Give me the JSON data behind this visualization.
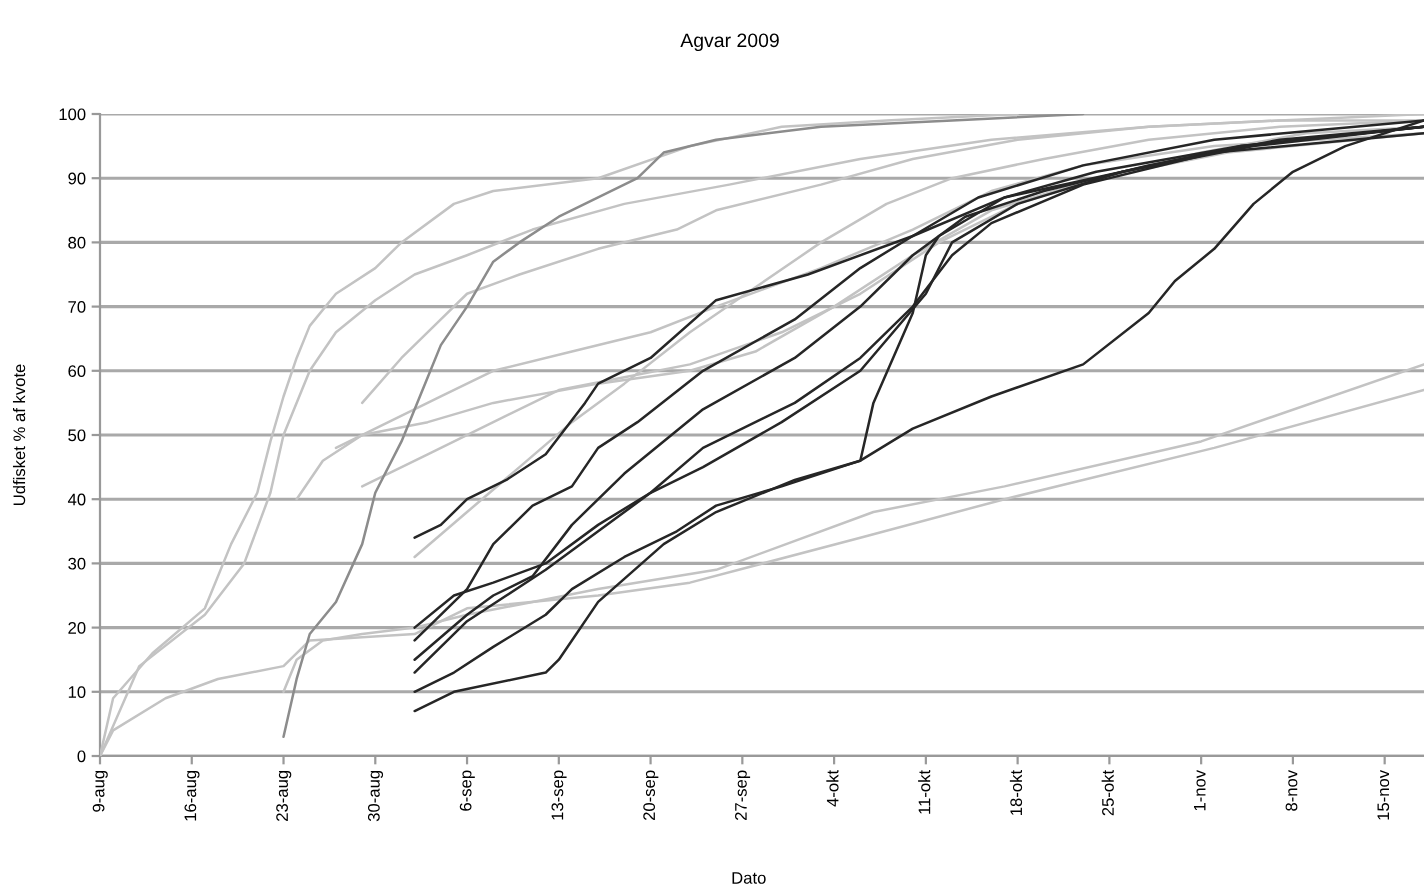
{
  "chart_data": {
    "type": "line",
    "title": "Agvar 2009",
    "xlabel": "Dato",
    "ylabel": "Udfisket % af kvote",
    "xlim": [
      "2009-08-09",
      "2009-11-18"
    ],
    "ylim": [
      0,
      100
    ],
    "xticks": [
      {
        "value": "2009-08-09",
        "label": "9-aug"
      },
      {
        "value": "2009-08-16",
        "label": "16-aug"
      },
      {
        "value": "2009-08-23",
        "label": "23-aug"
      },
      {
        "value": "2009-08-30",
        "label": "30-aug"
      },
      {
        "value": "2009-09-06",
        "label": "6-sep"
      },
      {
        "value": "2009-09-13",
        "label": "13-sep"
      },
      {
        "value": "2009-09-20",
        "label": "20-sep"
      },
      {
        "value": "2009-09-27",
        "label": "27-sep"
      },
      {
        "value": "2009-10-04",
        "label": "4-okt"
      },
      {
        "value": "2009-10-11",
        "label": "11-okt"
      },
      {
        "value": "2009-10-18",
        "label": "18-okt"
      },
      {
        "value": "2009-10-25",
        "label": "25-okt"
      },
      {
        "value": "2009-11-01",
        "label": "1-nov"
      },
      {
        "value": "2009-11-08",
        "label": "8-nov"
      },
      {
        "value": "2009-11-15",
        "label": "15-nov"
      }
    ],
    "yticks": [
      0,
      10,
      20,
      30,
      40,
      50,
      60,
      70,
      80,
      90,
      100
    ],
    "grid": "y",
    "series": [
      {
        "color": "#c3c3c3",
        "x": [
          "2009-08-09",
          "2009-08-10",
          "2009-08-13",
          "2009-08-17",
          "2009-08-19",
          "2009-08-21",
          "2009-08-22",
          "2009-08-23",
          "2009-08-24",
          "2009-08-25",
          "2009-08-27",
          "2009-08-30",
          "2009-09-01",
          "2009-09-05",
          "2009-09-08",
          "2009-09-16",
          "2009-09-23",
          "2009-09-30",
          "2009-10-08",
          "2009-10-18"
        ],
        "values": [
          0,
          9,
          16,
          23,
          33,
          41,
          49,
          56,
          62,
          67,
          72,
          76,
          80,
          86,
          88,
          90,
          95,
          98,
          99,
          100
        ]
      },
      {
        "color": "#c3c3c3",
        "x": [
          "2009-08-09",
          "2009-08-12",
          "2009-08-17",
          "2009-08-20",
          "2009-08-22",
          "2009-08-23",
          "2009-08-25",
          "2009-08-27",
          "2009-08-30",
          "2009-09-02",
          "2009-09-06",
          "2009-09-11",
          "2009-09-18",
          "2009-09-26",
          "2009-10-06",
          "2009-10-16",
          "2009-10-28",
          "2009-11-07",
          "2009-11-18"
        ],
        "values": [
          0,
          14,
          22,
          30,
          41,
          50,
          60,
          66,
          71,
          75,
          78,
          82,
          86,
          89,
          93,
          96,
          98,
          99,
          99
        ]
      },
      {
        "color": "#c3c3c3",
        "x": [
          "2009-08-09",
          "2009-08-10",
          "2009-08-14",
          "2009-08-18",
          "2009-08-23",
          "2009-08-25",
          "2009-09-02",
          "2009-09-06",
          "2009-09-16",
          "2009-09-23",
          "2009-10-06",
          "2009-10-17",
          "2009-11-02",
          "2009-11-18"
        ],
        "values": [
          0,
          4,
          9,
          12,
          14,
          18,
          19,
          23,
          25,
          27,
          34,
          40,
          48,
          57
        ]
      },
      {
        "color": "#c3c3c3",
        "x": [
          "2009-08-23",
          "2009-08-24",
          "2009-08-26",
          "2009-08-29",
          "2009-09-02",
          "2009-09-06",
          "2009-09-11",
          "2009-09-16",
          "2009-09-25",
          "2009-10-07",
          "2009-10-17",
          "2009-11-01",
          "2009-11-18"
        ],
        "values": [
          10,
          15,
          18,
          19,
          20,
          22,
          24,
          26,
          29,
          38,
          42,
          49,
          61
        ]
      },
      {
        "color": "#c3c3c3",
        "x": [
          "2009-09-02",
          "2009-09-06",
          "2009-09-10",
          "2009-09-14",
          "2009-09-18",
          "2009-09-23",
          "2009-09-28",
          "2009-10-03",
          "2009-10-08",
          "2009-10-13",
          "2009-10-20",
          "2009-10-28",
          "2009-11-07",
          "2009-11-18"
        ],
        "values": [
          31,
          38,
          45,
          52,
          58,
          66,
          73,
          80,
          86,
          90,
          93,
          96,
          98,
          99
        ]
      },
      {
        "color": "#c3c3c3",
        "x": [
          "2009-08-29",
          "2009-09-03",
          "2009-09-08",
          "2009-09-13",
          "2009-09-18",
          "2009-09-23",
          "2009-09-30",
          "2009-10-06",
          "2009-10-12",
          "2009-10-18",
          "2009-10-24",
          "2009-11-01",
          "2009-11-09",
          "2009-11-18"
        ],
        "values": [
          42,
          47,
          52,
          57,
          59,
          61,
          66,
          72,
          80,
          86,
          90,
          94,
          97,
          98
        ]
      },
      {
        "color": "#c3c3c3",
        "x": [
          "2009-08-24",
          "2009-08-26",
          "2009-08-29",
          "2009-09-03",
          "2009-09-08",
          "2009-09-16",
          "2009-09-23",
          "2009-09-28",
          "2009-10-04",
          "2009-10-10",
          "2009-10-16",
          "2009-10-24",
          "2009-11-03",
          "2009-11-18"
        ],
        "values": [
          40,
          46,
          50,
          52,
          55,
          58,
          60,
          63,
          70,
          78,
          85,
          90,
          94,
          97
        ]
      },
      {
        "color": "#c3c3c3",
        "x": [
          "2009-08-29",
          "2009-09-01",
          "2009-09-04",
          "2009-09-06",
          "2009-09-10",
          "2009-09-16",
          "2009-09-22",
          "2009-09-25",
          "2009-10-03",
          "2009-10-10",
          "2009-10-18",
          "2009-10-28",
          "2009-11-07",
          "2009-11-18"
        ],
        "values": [
          55,
          62,
          68,
          72,
          75,
          79,
          82,
          85,
          89,
          93,
          96,
          98,
          99,
          100
        ]
      },
      {
        "color": "#c3c3c3",
        "x": [
          "2009-08-27",
          "2009-08-31",
          "2009-09-04",
          "2009-09-08",
          "2009-09-14",
          "2009-09-20",
          "2009-09-25",
          "2009-10-03",
          "2009-10-10",
          "2009-10-16",
          "2009-10-23",
          "2009-11-02",
          "2009-11-18"
        ],
        "values": [
          48,
          52,
          56,
          60,
          63,
          66,
          70,
          76,
          82,
          88,
          92,
          95,
          97
        ]
      },
      {
        "color": "#8c8c8c",
        "x": [
          "2009-08-23",
          "2009-08-24",
          "2009-08-25",
          "2009-08-27",
          "2009-08-29",
          "2009-08-30",
          "2009-09-01",
          "2009-09-03",
          "2009-09-04",
          "2009-09-06",
          "2009-09-08",
          "2009-09-10",
          "2009-09-13",
          "2009-09-16",
          "2009-09-19",
          "2009-09-21",
          "2009-09-25",
          "2009-10-03",
          "2009-10-13",
          "2009-10-23"
        ],
        "values": [
          3,
          12,
          19,
          24,
          33,
          41,
          49,
          59,
          64,
          70,
          77,
          80,
          84,
          87,
          90,
          94,
          96,
          98,
          99,
          100
        ]
      },
      {
        "color": "#262626",
        "x": [
          "2009-09-02",
          "2009-09-04",
          "2009-09-06",
          "2009-09-09",
          "2009-09-12",
          "2009-09-15",
          "2009-09-16",
          "2009-09-20",
          "2009-09-25",
          "2009-10-02",
          "2009-10-10",
          "2009-10-15",
          "2009-10-23",
          "2009-11-02",
          "2009-11-18"
        ],
        "values": [
          34,
          36,
          40,
          43,
          47,
          55,
          58,
          62,
          71,
          75,
          81,
          87,
          92,
          96,
          99
        ]
      },
      {
        "color": "#262626",
        "x": [
          "2009-09-02",
          "2009-09-03",
          "2009-09-06",
          "2009-09-08",
          "2009-09-11",
          "2009-09-14",
          "2009-09-16",
          "2009-09-19",
          "2009-09-24",
          "2009-10-01",
          "2009-10-06",
          "2009-10-10",
          "2009-10-17",
          "2009-10-26",
          "2009-11-04",
          "2009-11-18"
        ],
        "values": [
          18,
          20,
          26,
          33,
          39,
          42,
          48,
          52,
          60,
          68,
          76,
          81,
          87,
          91,
          95,
          98
        ]
      },
      {
        "color": "#262626",
        "x": [
          "2009-09-02",
          "2009-09-06",
          "2009-09-08",
          "2009-09-11",
          "2009-09-14",
          "2009-09-18",
          "2009-09-24",
          "2009-10-01",
          "2009-10-06",
          "2009-10-10",
          "2009-10-14",
          "2009-10-20",
          "2009-10-28",
          "2009-11-07",
          "2009-11-18"
        ],
        "values": [
          15,
          22,
          25,
          28,
          36,
          44,
          54,
          62,
          70,
          78,
          84,
          88,
          92,
          96,
          98
        ]
      },
      {
        "color": "#262626",
        "x": [
          "2009-09-02",
          "2009-09-04",
          "2009-09-06",
          "2009-09-09",
          "2009-09-12",
          "2009-09-16",
          "2009-09-20",
          "2009-09-24",
          "2009-10-01",
          "2009-10-06",
          "2009-10-10",
          "2009-10-13",
          "2009-10-16",
          "2009-10-23",
          "2009-11-02",
          "2009-11-18"
        ],
        "values": [
          13,
          17,
          21,
          25,
          29,
          35,
          41,
          48,
          55,
          62,
          70,
          78,
          83,
          89,
          94,
          97
        ]
      },
      {
        "color": "#262626",
        "x": [
          "2009-09-02",
          "2009-09-05",
          "2009-09-08",
          "2009-09-12",
          "2009-09-14",
          "2009-09-18",
          "2009-09-22",
          "2009-09-25",
          "2009-09-30",
          "2009-10-06",
          "2009-10-07",
          "2009-10-10",
          "2009-10-11",
          "2009-10-12",
          "2009-10-17",
          "2009-10-24",
          "2009-11-04",
          "2009-11-18"
        ],
        "values": [
          10,
          13,
          17,
          22,
          26,
          31,
          35,
          39,
          42,
          46,
          55,
          69,
          78,
          81,
          87,
          91,
          95,
          98
        ]
      },
      {
        "color": "#262626",
        "x": [
          "2009-09-02",
          "2009-09-05",
          "2009-09-12",
          "2009-09-13",
          "2009-09-16",
          "2009-09-21",
          "2009-09-25",
          "2009-10-01",
          "2009-10-06",
          "2009-10-10",
          "2009-10-16",
          "2009-10-23",
          "2009-10-28",
          "2009-10-30",
          "2009-11-02",
          "2009-11-05",
          "2009-11-08",
          "2009-11-12",
          "2009-11-18"
        ],
        "values": [
          7,
          10,
          13,
          15,
          24,
          33,
          38,
          43,
          46,
          51,
          56,
          61,
          69,
          74,
          79,
          86,
          91,
          95,
          99
        ]
      },
      {
        "color": "#262626",
        "x": [
          "2009-09-02",
          "2009-09-05",
          "2009-09-08",
          "2009-09-12",
          "2009-09-16",
          "2009-09-20",
          "2009-09-24",
          "2009-09-30",
          "2009-10-06",
          "2009-10-11",
          "2009-10-13",
          "2009-10-18",
          "2009-10-26",
          "2009-11-05",
          "2009-11-18"
        ],
        "values": [
          20,
          25,
          27,
          30,
          36,
          41,
          45,
          52,
          60,
          72,
          80,
          86,
          91,
          95,
          98
        ]
      }
    ]
  }
}
